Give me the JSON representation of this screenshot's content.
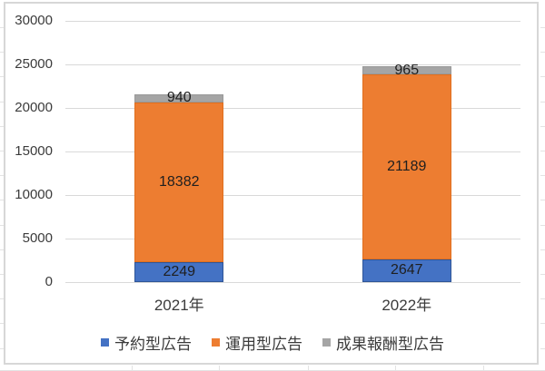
{
  "chart_data": {
    "type": "bar",
    "stacked": true,
    "title": "",
    "xlabel": "",
    "ylabel": "",
    "categories": [
      "2021年",
      "2022年"
    ],
    "series": [
      {
        "name": "予約型広告",
        "color": "#4472C4",
        "border_color": "#2F5597",
        "values": [
          2249,
          2647
        ]
      },
      {
        "name": "運用型広告",
        "color": "#ED7D31",
        "border_color": "#E06F1F",
        "values": [
          18382,
          21189
        ]
      },
      {
        "name": "成果報酬型広告",
        "color": "#A5A5A5",
        "border_color": "#999999",
        "values": [
          940,
          965
        ]
      }
    ],
    "totals": [
      21571,
      24801
    ],
    "ylim": [
      0,
      30000
    ],
    "yticks": [
      0,
      5000,
      10000,
      15000,
      20000,
      25000,
      30000
    ],
    "grid": true,
    "data_labels": true,
    "legend_position": "bottom",
    "colors": {
      "gridline": "#D9D9D9",
      "axis_text": "#3B3B3B",
      "data_label_text": "#1F1F1F",
      "chart_border": "#D7D7D7",
      "background": "#FFFFFF",
      "sheet_gridline": "#E3E3E3"
    }
  }
}
